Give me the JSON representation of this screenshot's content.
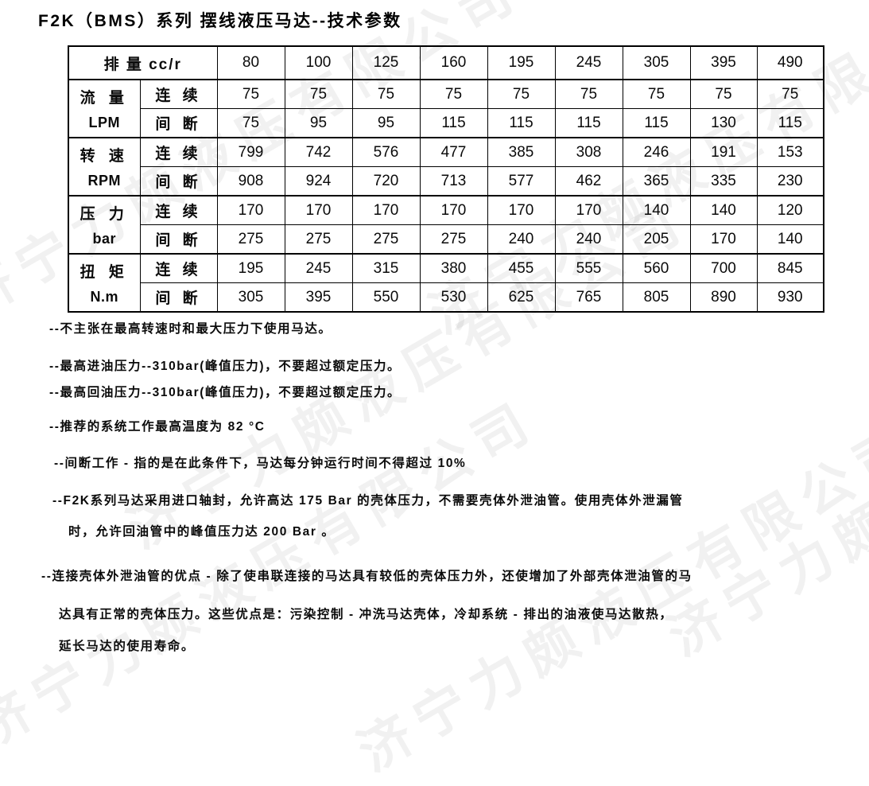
{
  "page": {
    "title": "F2K（BMS）系列 摆线液压马达--技术参数"
  },
  "watermark": {
    "text": "济宁力颇液压有限公司",
    "color": "#e9e9e9"
  },
  "table": {
    "header": {
      "label": "排 量 cc/r",
      "displacements": [
        "80",
        "100",
        "125",
        "160",
        "195",
        "245",
        "305",
        "395",
        "490"
      ]
    },
    "mode_labels": {
      "continuous": "连 续",
      "intermittent": "间 断"
    },
    "row_groups": [
      {
        "name": "流 量",
        "unit": "LPM",
        "continuous": [
          "75",
          "75",
          "75",
          "75",
          "75",
          "75",
          "75",
          "75",
          "75"
        ],
        "intermittent": [
          "75",
          "95",
          "95",
          "115",
          "115",
          "115",
          "115",
          "130",
          "115"
        ]
      },
      {
        "name": "转 速",
        "unit": "RPM",
        "continuous": [
          "799",
          "742",
          "576",
          "477",
          "385",
          "308",
          "246",
          "191",
          "153"
        ],
        "intermittent": [
          "908",
          "924",
          "720",
          "713",
          "577",
          "462",
          "365",
          "335",
          "230"
        ]
      },
      {
        "name": "压 力",
        "unit": "bar",
        "continuous": [
          "170",
          "170",
          "170",
          "170",
          "170",
          "170",
          "140",
          "140",
          "120"
        ],
        "intermittent": [
          "275",
          "275",
          "275",
          "275",
          "240",
          "240",
          "205",
          "170",
          "140"
        ]
      },
      {
        "name": "扭 矩",
        "unit": "N.m",
        "continuous": [
          "195",
          "245",
          "315",
          "380",
          "455",
          "555",
          "560",
          "700",
          "845"
        ],
        "intermittent": [
          "305",
          "395",
          "550",
          "530",
          "625",
          "765",
          "805",
          "890",
          "930"
        ]
      }
    ]
  },
  "notes": [
    "--不主张在最高转速时和最大压力下使用马达。",
    "--最高进油压力--310bar(峰值压力)，不要超过额定压力。",
    "--最高回油压力--310bar(峰值压力)，不要超过额定压力。",
    "--推荐的系统工作最高温度为 82 °C",
    "--间断工作 - 指的是在此条件下，马达每分钟运行时间不得超过 10%",
    "--F2K系列马达采用进口轴封，允许高达 175 Bar 的壳体压力，不需要壳体外泄油管。使用壳体外泄漏管",
    "时，允许回油管中的峰值压力达 200 Bar 。",
    "--连接壳体外泄油管的优点 - 除了使串联连接的马达具有较低的壳体压力外，还使增加了外部壳体泄油管的马",
    "达具有正常的壳体压力。这些优点是：污染控制 - 冲洗马达壳体，冷却系统 - 排出的油液使马达散热，",
    "延长马达的使用寿命。"
  ]
}
